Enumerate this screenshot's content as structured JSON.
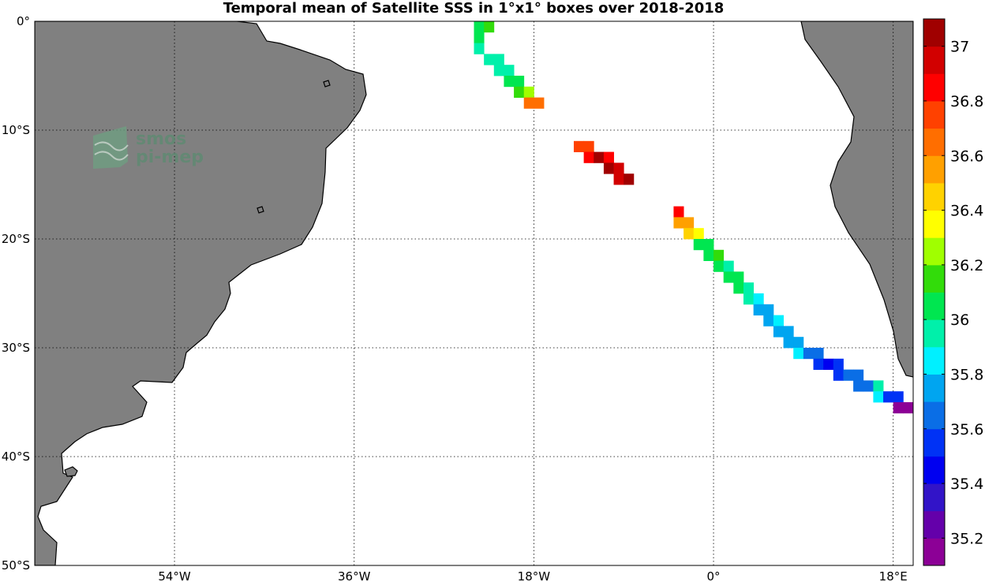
{
  "title": "Temporal mean of Satellite SSS in 1°x1° boxes over 2018-2018",
  "logo": {
    "line1": "smos",
    "line2": "pi-mep"
  },
  "colors": {
    "land": "#808080",
    "ocean": "#ffffff"
  },
  "lat_ticks": [
    {
      "lat": 0,
      "label": "0°"
    },
    {
      "lat": -10,
      "label": "10°S"
    },
    {
      "lat": -20,
      "label": "20°S"
    },
    {
      "lat": -30,
      "label": "30°S"
    },
    {
      "lat": -40,
      "label": "40°S"
    },
    {
      "lat": -50,
      "label": "50°S"
    }
  ],
  "lon_ticks": [
    {
      "lon": -54,
      "label": "54°W"
    },
    {
      "lon": -36,
      "label": "36°W"
    },
    {
      "lon": -18,
      "label": "18°W"
    },
    {
      "lon": 0,
      "label": "0°"
    },
    {
      "lon": 18,
      "label": "18°E"
    }
  ],
  "grid_lats": [
    -10,
    -20,
    -30,
    -40
  ],
  "grid_lons": [
    -54,
    -36,
    -18,
    0,
    18
  ],
  "chart_data": {
    "type": "heatmap",
    "title": "Temporal mean of Satellite SSS in 1°x1° boxes over 2018-2018",
    "xlabel": "",
    "ylabel": "",
    "xlim": [
      -68,
      20
    ],
    "ylim": [
      -50,
      0
    ],
    "grid": true,
    "legend": "colorbar-right",
    "colorbar": {
      "range": [
        35.1,
        37.1
      ],
      "ticks": [
        35.2,
        35.4,
        35.6,
        35.8,
        36,
        36.2,
        36.4,
        36.6,
        36.8,
        37
      ],
      "tick_labels": [
        "35.2",
        "35.4",
        "35.6",
        "35.8",
        "36",
        "36.2",
        "36.4",
        "36.6",
        "36.8",
        "37"
      ],
      "colors": [
        "#8c0096",
        "#6400aa",
        "#3214c8",
        "#0000f0",
        "#0032f5",
        "#0a6ee6",
        "#00a5f0",
        "#00f0ff",
        "#00f0aa",
        "#00e650",
        "#32dc0a",
        "#a0ff00",
        "#ffff00",
        "#ffd200",
        "#ffa000",
        "#ff6e00",
        "#ff4100",
        "#ff0000",
        "#d20000",
        "#a00000"
      ]
    },
    "cells": [
      {
        "lon": -23.5,
        "lat": -0.5,
        "sss": 36.05
      },
      {
        "lon": -22.5,
        "lat": -0.5,
        "sss": 36.18
      },
      {
        "lon": -23.5,
        "lat": -1.5,
        "sss": 36.05
      },
      {
        "lon": -23.5,
        "lat": -2.5,
        "sss": 35.92
      },
      {
        "lon": -22.5,
        "lat": -3.5,
        "sss": 35.92
      },
      {
        "lon": -21.5,
        "lat": -3.5,
        "sss": 35.92
      },
      {
        "lon": -21.5,
        "lat": -4.5,
        "sss": 35.92
      },
      {
        "lon": -20.5,
        "lat": -4.5,
        "sss": 35.92
      },
      {
        "lon": -20.5,
        "lat": -5.5,
        "sss": 36.05
      },
      {
        "lon": -19.5,
        "lat": -5.5,
        "sss": 36.05
      },
      {
        "lon": -19.5,
        "lat": -6.5,
        "sss": 36.1
      },
      {
        "lon": -18.5,
        "lat": -6.5,
        "sss": 36.25
      },
      {
        "lon": -18.5,
        "lat": -7.5,
        "sss": 36.6
      },
      {
        "lon": -17.5,
        "lat": -7.5,
        "sss": 36.6
      },
      {
        "lon": -13.5,
        "lat": -11.5,
        "sss": 36.75
      },
      {
        "lon": -12.5,
        "lat": -11.5,
        "sss": 36.75
      },
      {
        "lon": -12.5,
        "lat": -12.5,
        "sss": 36.85
      },
      {
        "lon": -11.5,
        "lat": -12.5,
        "sss": 37.05
      },
      {
        "lon": -10.5,
        "lat": -12.5,
        "sss": 36.85
      },
      {
        "lon": -10.5,
        "lat": -13.5,
        "sss": 37.05
      },
      {
        "lon": -9.5,
        "lat": -13.5,
        "sss": 36.95
      },
      {
        "lon": -9.5,
        "lat": -14.5,
        "sss": 36.95
      },
      {
        "lon": -8.5,
        "lat": -14.5,
        "sss": 37.05
      },
      {
        "lon": -3.5,
        "lat": -17.5,
        "sss": 36.85
      },
      {
        "lon": -3.5,
        "lat": -18.5,
        "sss": 36.55
      },
      {
        "lon": -2.5,
        "lat": -18.5,
        "sss": 36.55
      },
      {
        "lon": -2.5,
        "lat": -19.5,
        "sss": 36.45
      },
      {
        "lon": -1.5,
        "lat": -19.5,
        "sss": 36.35
      },
      {
        "lon": -1.5,
        "lat": -20.5,
        "sss": 36.05
      },
      {
        "lon": -0.5,
        "lat": -20.5,
        "sss": 36.05
      },
      {
        "lon": -0.5,
        "lat": -21.5,
        "sss": 36.05
      },
      {
        "lon": 0.5,
        "lat": -21.5,
        "sss": 36.15
      },
      {
        "lon": 0.5,
        "lat": -22.5,
        "sss": 36.05
      },
      {
        "lon": 1.5,
        "lat": -22.5,
        "sss": 35.92
      },
      {
        "lon": 1.5,
        "lat": -23.5,
        "sss": 36.05
      },
      {
        "lon": 2.5,
        "lat": -23.5,
        "sss": 36.05
      },
      {
        "lon": 2.5,
        "lat": -24.5,
        "sss": 36.05
      },
      {
        "lon": 3.5,
        "lat": -24.5,
        "sss": 35.92
      },
      {
        "lon": 3.5,
        "lat": -25.5,
        "sss": 35.92
      },
      {
        "lon": 4.5,
        "lat": -25.5,
        "sss": 35.82
      },
      {
        "lon": 4.5,
        "lat": -26.5,
        "sss": 35.75
      },
      {
        "lon": 5.5,
        "lat": -26.5,
        "sss": 35.75
      },
      {
        "lon": 5.5,
        "lat": -27.5,
        "sss": 35.75
      },
      {
        "lon": 6.5,
        "lat": -27.5,
        "sss": 35.82
      },
      {
        "lon": 6.5,
        "lat": -28.5,
        "sss": 35.75
      },
      {
        "lon": 7.5,
        "lat": -28.5,
        "sss": 35.75
      },
      {
        "lon": 7.5,
        "lat": -29.5,
        "sss": 35.75
      },
      {
        "lon": 8.5,
        "lat": -29.5,
        "sss": 35.75
      },
      {
        "lon": 8.5,
        "lat": -30.5,
        "sss": 35.82
      },
      {
        "lon": 9.5,
        "lat": -30.5,
        "sss": 35.65
      },
      {
        "lon": 10.5,
        "lat": -30.5,
        "sss": 35.65
      },
      {
        "lon": 10.5,
        "lat": -31.5,
        "sss": 35.55
      },
      {
        "lon": 11.5,
        "lat": -31.5,
        "sss": 35.45
      },
      {
        "lon": 12.5,
        "lat": -31.5,
        "sss": 35.55
      },
      {
        "lon": 12.5,
        "lat": -32.5,
        "sss": 35.55
      },
      {
        "lon": 13.5,
        "lat": -32.5,
        "sss": 35.65
      },
      {
        "lon": 14.5,
        "lat": -32.5,
        "sss": 35.65
      },
      {
        "lon": 14.5,
        "lat": -33.5,
        "sss": 35.65
      },
      {
        "lon": 15.5,
        "lat": -33.5,
        "sss": 35.65
      },
      {
        "lon": 16.5,
        "lat": -33.5,
        "sss": 35.92
      },
      {
        "lon": 16.5,
        "lat": -34.5,
        "sss": 35.82
      },
      {
        "lon": 17.5,
        "lat": -34.5,
        "sss": 35.55
      },
      {
        "lon": 18.5,
        "lat": -34.5,
        "sss": 35.55
      },
      {
        "lon": 18.5,
        "lat": -35.5,
        "sss": 35.15
      },
      {
        "lon": 19.5,
        "lat": -35.5,
        "sss": 35.15
      }
    ]
  }
}
